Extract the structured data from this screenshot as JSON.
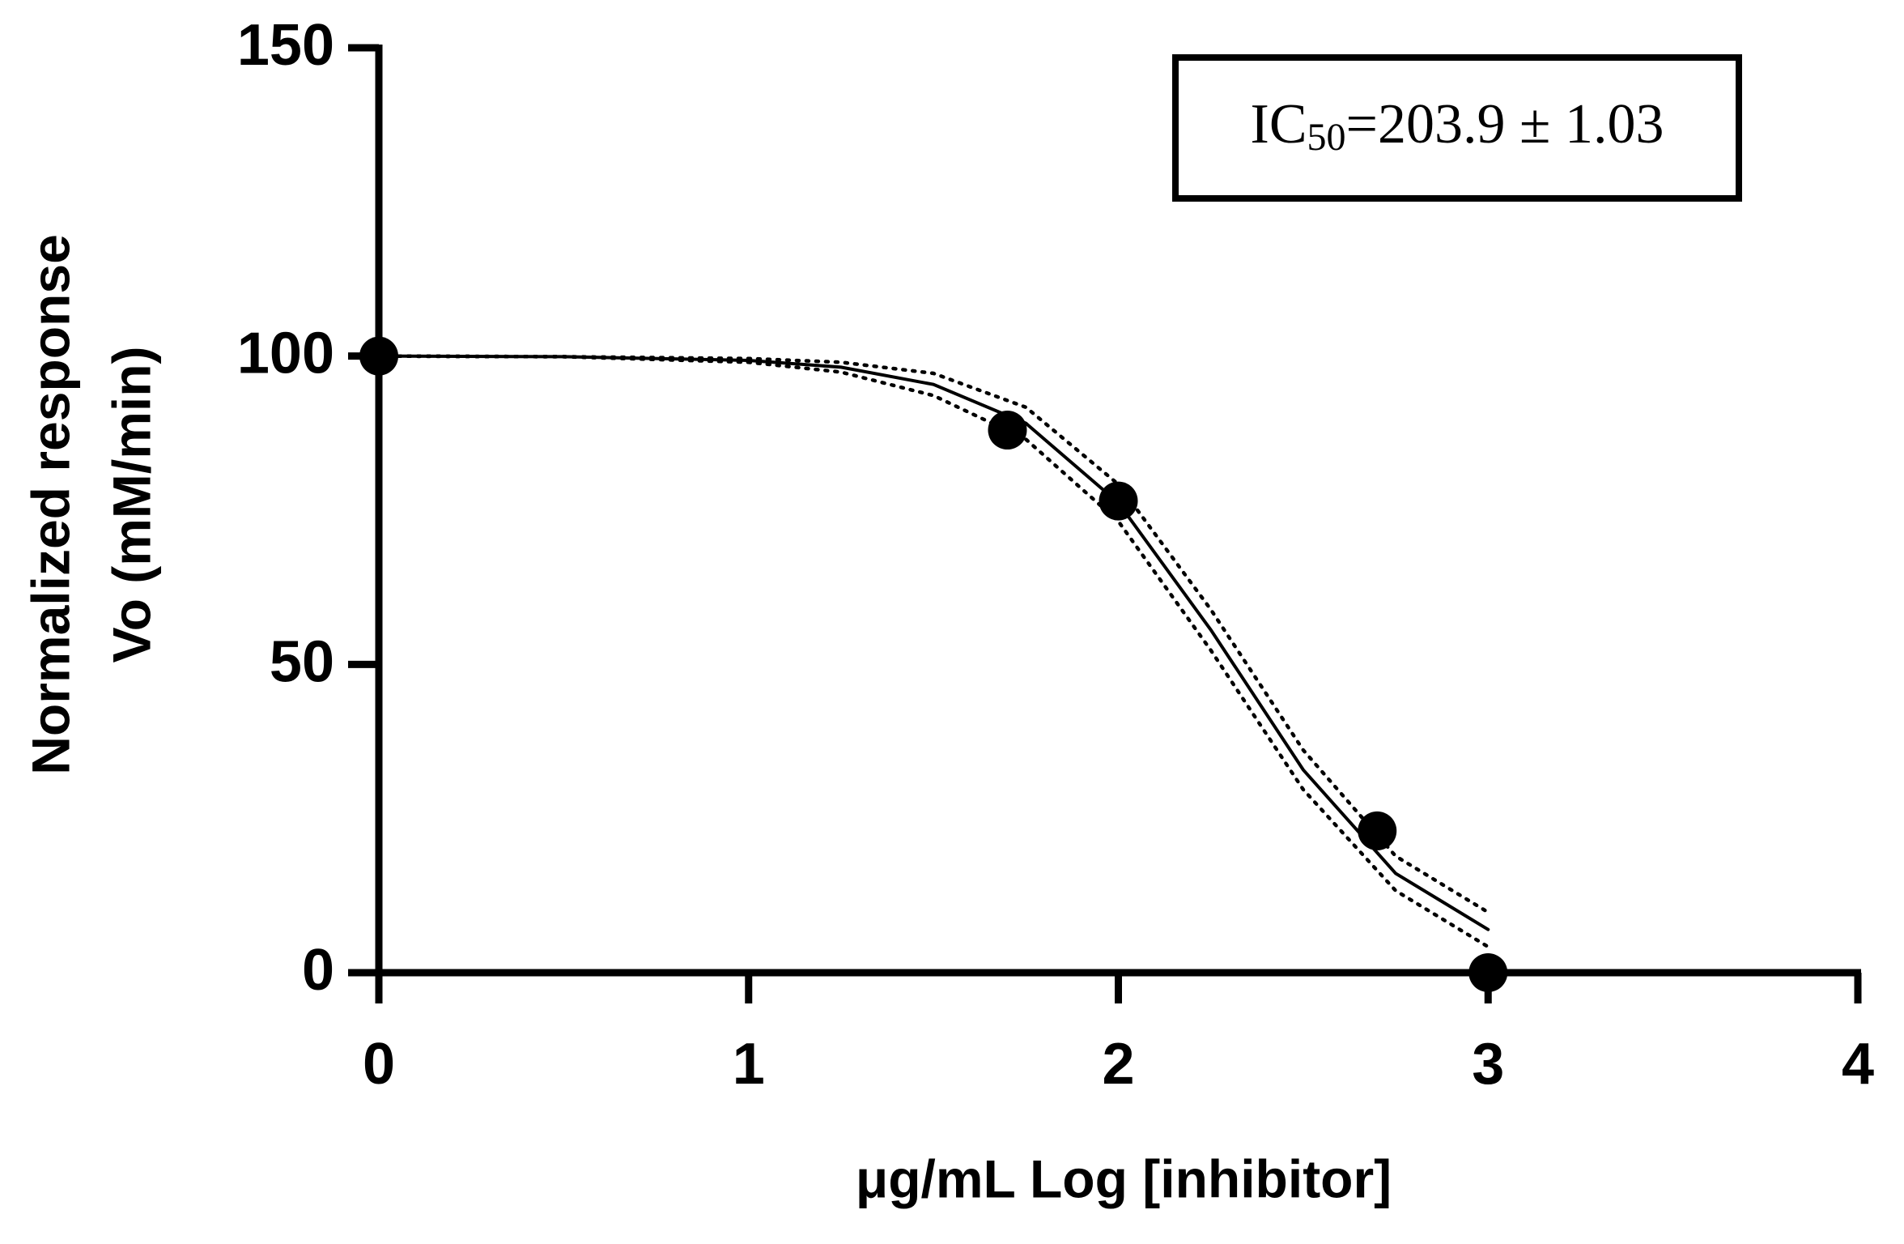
{
  "chart_data": {
    "type": "scatter",
    "xlabel": "μg/mL Log [inhibitor]",
    "ylabel": [
      "Normalized response",
      "Vo (mM/min)"
    ],
    "annotation": {
      "main": "IC",
      "sub": "50",
      "rest": "=203.9 ± 1.03"
    },
    "xlim": [
      0,
      4
    ],
    "xticks": [
      0,
      1,
      2,
      3,
      4
    ],
    "ylim": [
      0,
      150
    ],
    "yticks": [
      0,
      50,
      100,
      150
    ],
    "series": [
      {
        "type": "scatter",
        "color": "#000000",
        "x": [
          0,
          1.7,
          2,
          2.7,
          3
        ],
        "values": [
          100,
          88,
          76.5,
          23,
          0
        ]
      },
      {
        "type": "line",
        "line_style": "solid",
        "color": "#000000",
        "x": [
          0,
          0.5,
          1,
          1.25,
          1.5,
          1.75,
          2,
          2.25,
          2.5,
          2.75,
          3
        ],
        "values": [
          100,
          99.9,
          99.3,
          98.2,
          95.4,
          89.1,
          76.2,
          55.6,
          32.9,
          16.1,
          7.0
        ]
      },
      {
        "type": "line",
        "line_style": "dotted",
        "color": "#000000",
        "x": [
          0,
          0.5,
          1,
          1.25,
          1.5,
          1.75,
          2,
          2.25,
          2.5,
          2.75,
          3
        ],
        "values": [
          100,
          99.9,
          99.6,
          99.0,
          97.2,
          91.7,
          79.2,
          58.9,
          36.1,
          18.9,
          9.8
        ]
      },
      {
        "type": "line",
        "line_style": "dotted",
        "color": "#000000",
        "x": [
          0,
          0.5,
          1,
          1.25,
          1.5,
          1.75,
          2,
          2.25,
          2.5,
          2.75,
          3
        ],
        "values": [
          100,
          99.9,
          99.0,
          97.4,
          93.6,
          86.5,
          73.2,
          52.3,
          29.7,
          13.3,
          4.2
        ]
      }
    ]
  }
}
